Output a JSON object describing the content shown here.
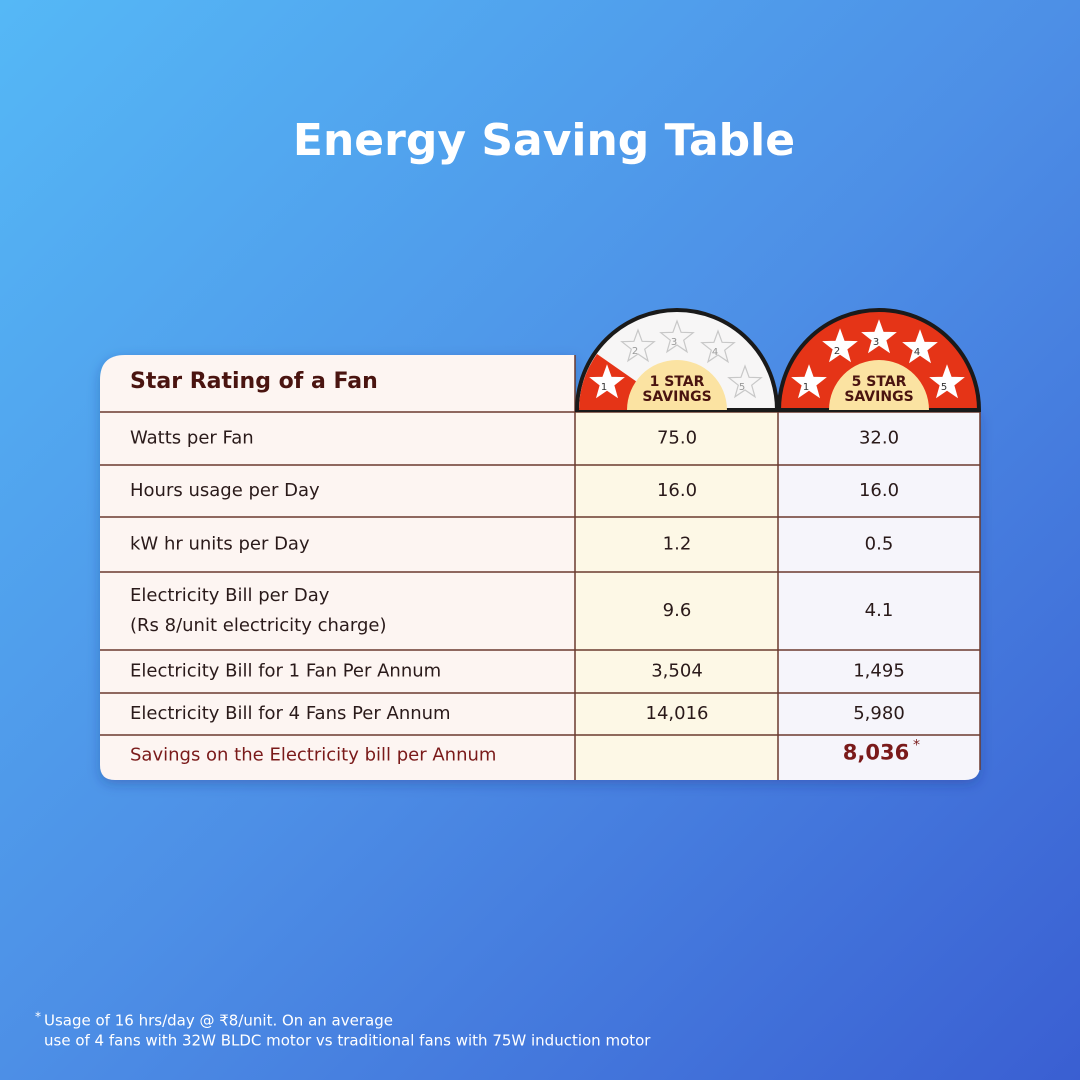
{
  "header": {
    "title": "Energy Saving Table"
  },
  "table": {
    "corner": "Star Rating of a Fan",
    "columns": [
      {
        "label": [
          "1 STAR",
          "SAVINGS"
        ],
        "stars": [
          "1",
          "2",
          "3",
          "4",
          "5"
        ]
      },
      {
        "label": [
          "5 STAR",
          "SAVINGS"
        ],
        "stars": [
          "1",
          "2",
          "3",
          "4",
          "5"
        ]
      }
    ],
    "rows": [
      {
        "label": [
          "Watts per Fan"
        ],
        "values": [
          "75.0",
          "32.0"
        ]
      },
      {
        "label": [
          "Hours usage per Day"
        ],
        "values": [
          "16.0",
          "16.0"
        ]
      },
      {
        "label": [
          "kW hr units per Day"
        ],
        "values": [
          "1.2",
          "0.5"
        ]
      },
      {
        "label": [
          "Electricity Bill per Day",
          "(Rs 8/unit electricity charge)"
        ],
        "values": [
          "9.6",
          "4.1"
        ]
      },
      {
        "label": [
          "Electricity Bill for 1 Fan Per Annum"
        ],
        "values": [
          "3,504",
          "1,495"
        ]
      },
      {
        "label": [
          "Electricity Bill for 4 Fans Per Annum"
        ],
        "values": [
          "14,016",
          "5,980"
        ]
      }
    ],
    "savings": {
      "label": "Savings on the Electricity bill per Annum",
      "value": "8,036",
      "mark": "*"
    }
  },
  "footnote": {
    "mark": "*",
    "lines": [
      "Usage of 16 hrs/day @ ₹8/unit. On an average",
      "use of 4 fans with 32W BLDC motor vs traditional fans with 75W induction motor"
    ]
  }
}
